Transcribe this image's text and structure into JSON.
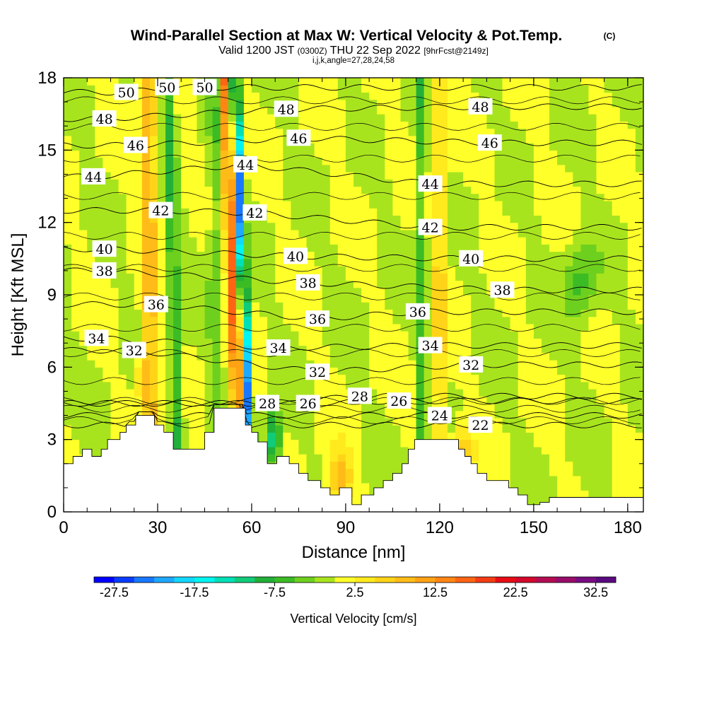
{
  "chart_data": {
    "type": "heatmap",
    "title": "Wind-Parallel Section at Max W: Vertical Velocity & Pot.Temp.",
    "title_mark": "(C)",
    "subtitle_valid": "Valid 1200 JST",
    "subtitle_utc": "(0300Z)",
    "subtitle_date": "THU 22 Sep 2022",
    "subtitle_fcst": "[9hrFcst@2149z]",
    "subtitle_indices": "i,j,k,angle=27,28,24,58",
    "xlabel": "Distance [nm]",
    "ylabel": "Height [Kft MSL]",
    "xlim": [
      0,
      185
    ],
    "ylim": [
      0,
      18
    ],
    "xticks": [
      "0",
      "30",
      "60",
      "90",
      "120",
      "150",
      "180"
    ],
    "xtick_values": [
      0,
      30,
      60,
      90,
      120,
      150,
      180
    ],
    "yticks": [
      "0",
      "3",
      "6",
      "9",
      "12",
      "15",
      "18"
    ],
    "ytick_values": [
      0,
      3,
      6,
      9,
      12,
      15,
      18
    ],
    "colorbar": {
      "label": "Vertical Velocity [cm/s]",
      "min": -30,
      "max": 35,
      "step": 2.5,
      "tick_labels": [
        "-27.5",
        "-17.5",
        "-7.5",
        "2.5",
        "12.5",
        "22.5",
        "32.5"
      ],
      "tick_values": [
        -27.5,
        -17.5,
        -7.5,
        2.5,
        12.5,
        22.5,
        32.5
      ],
      "colors": [
        "#0000ff",
        "#0a3cff",
        "#1878ff",
        "#1ea8ff",
        "#12d8ff",
        "#00f4f0",
        "#00e0b8",
        "#10cc7a",
        "#22b038",
        "#3cbc24",
        "#6ed01e",
        "#a8e41e",
        "#ffff2a",
        "#ffea1e",
        "#ffd418",
        "#ffbc18",
        "#ffa214",
        "#ff8614",
        "#ff6414",
        "#f43c14",
        "#e80c14",
        "#d4082c",
        "#b40c52",
        "#980c6a",
        "#780c80",
        "#5a0a80"
      ]
    },
    "terrain_kft": [
      [
        0,
        2.0
      ],
      [
        3,
        2.0
      ],
      [
        3,
        2.3
      ],
      [
        6,
        2.3
      ],
      [
        6,
        2.6
      ],
      [
        9,
        2.6
      ],
      [
        9,
        2.3
      ],
      [
        12,
        2.3
      ],
      [
        12,
        2.6
      ],
      [
        14,
        2.6
      ],
      [
        14,
        3.0
      ],
      [
        18,
        3.0
      ],
      [
        18,
        3.3
      ],
      [
        20,
        3.3
      ],
      [
        20,
        3.6
      ],
      [
        23,
        3.6
      ],
      [
        23,
        4.0
      ],
      [
        29,
        4.0
      ],
      [
        29,
        3.6
      ],
      [
        32,
        3.6
      ],
      [
        32,
        3.3
      ],
      [
        35,
        3.3
      ],
      [
        35,
        2.6
      ],
      [
        45,
        2.6
      ],
      [
        45,
        3.3
      ],
      [
        48,
        3.3
      ],
      [
        48,
        4.3
      ],
      [
        58,
        4.3
      ],
      [
        58,
        3.6
      ],
      [
        60,
        3.6
      ],
      [
        60,
        3.3
      ],
      [
        62,
        3.3
      ],
      [
        62,
        2.9
      ],
      [
        65,
        2.9
      ],
      [
        65,
        2.0
      ],
      [
        68,
        2.0
      ],
      [
        68,
        2.3
      ],
      [
        72,
        2.3
      ],
      [
        72,
        2.0
      ],
      [
        75,
        2.0
      ],
      [
        75,
        1.6
      ],
      [
        78,
        1.6
      ],
      [
        78,
        1.3
      ],
      [
        82,
        1.3
      ],
      [
        82,
        1.0
      ],
      [
        85,
        1.0
      ],
      [
        85,
        0.7
      ],
      [
        88,
        0.7
      ],
      [
        88,
        1.0
      ],
      [
        92,
        1.0
      ],
      [
        92,
        0.3
      ],
      [
        95,
        0.3
      ],
      [
        95,
        0.7
      ],
      [
        99,
        0.7
      ],
      [
        99,
        1.0
      ],
      [
        102,
        1.0
      ],
      [
        102,
        1.3
      ],
      [
        105,
        1.3
      ],
      [
        105,
        1.6
      ],
      [
        108,
        1.6
      ],
      [
        108,
        2.0
      ],
      [
        110,
        2.0
      ],
      [
        110,
        2.6
      ],
      [
        112,
        2.6
      ],
      [
        112,
        3.0
      ],
      [
        126,
        3.0
      ],
      [
        126,
        2.6
      ],
      [
        128,
        2.6
      ],
      [
        128,
        2.3
      ],
      [
        130,
        2.3
      ],
      [
        130,
        2.0
      ],
      [
        132,
        2.0
      ],
      [
        132,
        1.6
      ],
      [
        135,
        1.6
      ],
      [
        135,
        1.3
      ],
      [
        142,
        1.3
      ],
      [
        142,
        1.0
      ],
      [
        145,
        1.0
      ],
      [
        145,
        0.7
      ],
      [
        148,
        0.7
      ],
      [
        148,
        0.3
      ],
      [
        152,
        0.3
      ],
      [
        152,
        0.4
      ],
      [
        155,
        0.4
      ],
      [
        155,
        0.6
      ],
      [
        185,
        0.6
      ]
    ],
    "theta_contour_labels": [
      {
        "text": "50",
        "x": 20,
        "y": 17.4
      },
      {
        "text": "50",
        "x": 33,
        "y": 17.6
      },
      {
        "text": "50",
        "x": 45,
        "y": 17.6
      },
      {
        "text": "48",
        "x": 13,
        "y": 16.3
      },
      {
        "text": "48",
        "x": 71,
        "y": 16.7
      },
      {
        "text": "48",
        "x": 133,
        "y": 16.8
      },
      {
        "text": "46",
        "x": 23,
        "y": 15.2
      },
      {
        "text": "46",
        "x": 75,
        "y": 15.5
      },
      {
        "text": "46",
        "x": 136,
        "y": 15.3
      },
      {
        "text": "44",
        "x": 9.5,
        "y": 13.9
      },
      {
        "text": "44",
        "x": 58,
        "y": 14.4
      },
      {
        "text": "44",
        "x": 117,
        "y": 13.6
      },
      {
        "text": "42",
        "x": 31,
        "y": 12.5
      },
      {
        "text": "42",
        "x": 61,
        "y": 12.4
      },
      {
        "text": "42",
        "x": 117,
        "y": 11.8
      },
      {
        "text": "40",
        "x": 13,
        "y": 10.9
      },
      {
        "text": "40",
        "x": 74,
        "y": 10.6
      },
      {
        "text": "40",
        "x": 130,
        "y": 10.5
      },
      {
        "text": "38",
        "x": 13,
        "y": 10.0
      },
      {
        "text": "38",
        "x": 78,
        "y": 9.5
      },
      {
        "text": "38",
        "x": 140,
        "y": 9.2
      },
      {
        "text": "36",
        "x": 29.5,
        "y": 8.6
      },
      {
        "text": "36",
        "x": 81,
        "y": 8.0
      },
      {
        "text": "36",
        "x": 113,
        "y": 8.3
      },
      {
        "text": "34",
        "x": 10.5,
        "y": 7.2
      },
      {
        "text": "34",
        "x": 68.5,
        "y": 6.8
      },
      {
        "text": "34",
        "x": 117,
        "y": 6.9
      },
      {
        "text": "32",
        "x": 22.5,
        "y": 6.7
      },
      {
        "text": "32",
        "x": 81,
        "y": 5.8
      },
      {
        "text": "32",
        "x": 130,
        "y": 6.1
      },
      {
        "text": "28",
        "x": 65,
        "y": 4.5
      },
      {
        "text": "28",
        "x": 94.5,
        "y": 4.8
      },
      {
        "text": "26",
        "x": 78,
        "y": 4.5
      },
      {
        "text": "26",
        "x": 107,
        "y": 4.6
      },
      {
        "text": "24",
        "x": 120,
        "y": 4.0
      },
      {
        "text": "22",
        "x": 133,
        "y": 3.6
      }
    ]
  }
}
